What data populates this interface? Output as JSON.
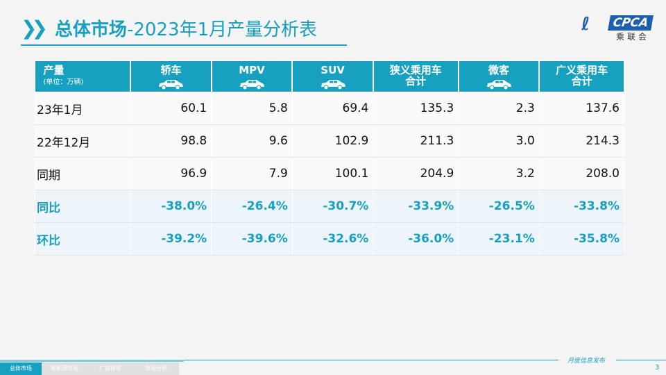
{
  "title": {
    "bold": "总体市场",
    "rest": "-2023年1月产量分析表"
  },
  "logo": {
    "text": "CPCA",
    "cn": "乘联会"
  },
  "table": {
    "header_first": {
      "label": "产量",
      "unit": "(单位：万辆)"
    },
    "columns": [
      {
        "label": "轿车",
        "icon": "sedan-icon"
      },
      {
        "label": "MPV",
        "icon": "mpv-icon"
      },
      {
        "label": "SUV",
        "icon": "suv-icon"
      },
      {
        "label": "狭义乘用车",
        "label2": "合计"
      },
      {
        "label": "微客",
        "icon": "minivan-icon"
      },
      {
        "label": "广义乘用车",
        "label2": "合计"
      }
    ],
    "rows": [
      {
        "label": "23年1月",
        "values": [
          "60.1",
          "5.8",
          "69.4",
          "135.3",
          "2.3",
          "137.6"
        ]
      },
      {
        "label": "22年12月",
        "values": [
          "98.8",
          "9.6",
          "102.9",
          "211.3",
          "3.0",
          "214.3"
        ]
      },
      {
        "label": "同期",
        "values": [
          "96.9",
          "7.9",
          "100.1",
          "204.9",
          "3.2",
          "208.0"
        ]
      },
      {
        "label": "同比",
        "values": [
          "-38.0%",
          "-26.4%",
          "-30.7%",
          "-33.9%",
          "-26.5%",
          "-33.8%"
        ]
      },
      {
        "label": "环比",
        "values": [
          "-39.2%",
          "-39.6%",
          "-32.6%",
          "-36.0%",
          "-23.1%",
          "-35.8%"
        ]
      }
    ]
  },
  "footer": {
    "tabs": [
      "总体市场",
      "新能源市场",
      "厂商排名",
      "市场分析"
    ],
    "monthly": "月度信息发布",
    "page": "3"
  },
  "colors": {
    "accent": "#17a0c0"
  }
}
